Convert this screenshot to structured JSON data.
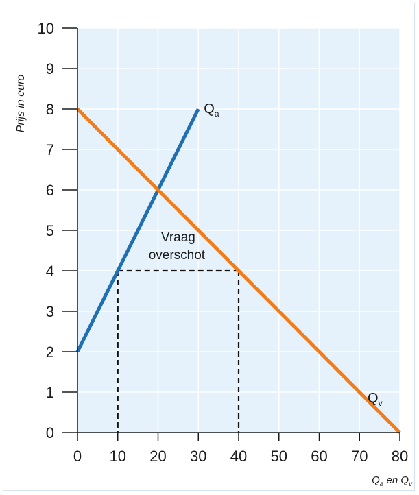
{
  "chart_data": {
    "type": "line",
    "ylabel": "Prijs in euro",
    "xlabel": {
      "main": "Q",
      "sub1": "a",
      "mid": " en Q",
      "sub2": "v"
    },
    "xlim": [
      0,
      80
    ],
    "ylim": [
      0,
      10
    ],
    "xticks": [
      0,
      10,
      20,
      30,
      40,
      50,
      60,
      70,
      80
    ],
    "yticks": [
      0,
      1,
      2,
      3,
      4,
      5,
      6,
      7,
      8,
      9,
      10
    ],
    "grid": true,
    "series": [
      {
        "name": "Qa",
        "label_main": "Q",
        "label_sub": "a",
        "color": "#1f6fb2",
        "points": [
          [
            0,
            2
          ],
          [
            30,
            8
          ]
        ]
      },
      {
        "name": "Qv",
        "label_main": "Q",
        "label_sub": "v",
        "color": "#f07c1c",
        "points": [
          [
            0,
            8
          ],
          [
            80,
            0
          ]
        ]
      }
    ],
    "annotation": {
      "lines": [
        "Vraag",
        "overschot"
      ],
      "price": 4,
      "from_q": 10,
      "to_q": 40
    }
  },
  "colors": {
    "plot_background": "#e6f2fb",
    "grid": "#ffffff",
    "axis": "#1a1a1a",
    "dashed": "#111111"
  }
}
